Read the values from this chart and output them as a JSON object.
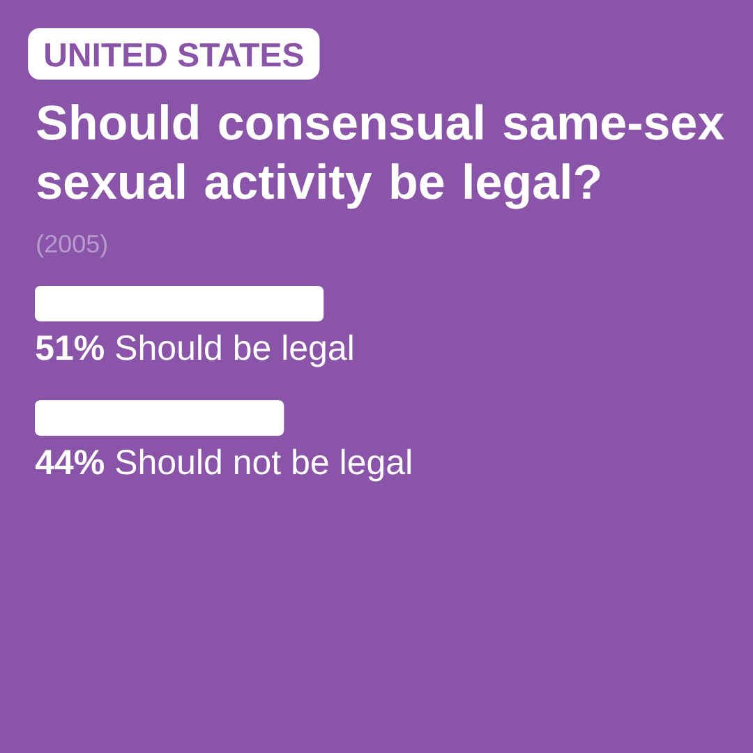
{
  "chart_data": {
    "type": "bar",
    "orientation": "horizontal",
    "title": "Should consensual same-sex sexual activity be legal?",
    "annotations": [
      "UNITED STATES",
      "(2005)"
    ],
    "categories": [
      "Should be legal",
      "Should not be legal"
    ],
    "values": [
      51,
      44
    ],
    "value_labels": [
      "51%",
      "44%"
    ],
    "color": "#ffffff"
  }
}
